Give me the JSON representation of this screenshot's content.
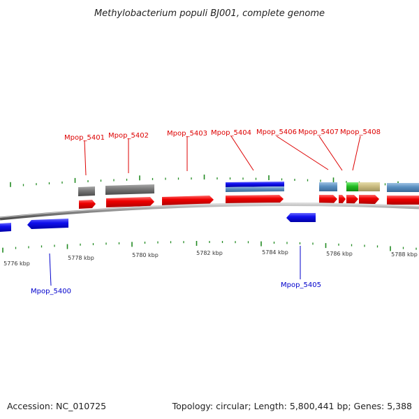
{
  "title": "Methylobacterium populi BJ001, complete genome",
  "footer": {
    "accession": "Accession: NC_010725",
    "stats": "Topology: circular; Length: 5,800,441 bp; Genes: 5,388"
  },
  "colors": {
    "forward_cds": "#e60000",
    "reverse_cds": "#1010dd",
    "label_forward": "#dd0000",
    "label_reverse": "#0000cc",
    "tick": "#228b22",
    "backbone": "#8a8a8a"
  },
  "ticks": [
    {
      "label": "5776 kbp"
    },
    {
      "label": "5778 kbp"
    },
    {
      "label": "5780 kbp"
    },
    {
      "label": "5782 kbp"
    },
    {
      "label": "5784 kbp"
    },
    {
      "label": "5786 kbp"
    },
    {
      "label": "5788 kbp"
    }
  ],
  "genes_forward": [
    {
      "name": "Mpop_5401"
    },
    {
      "name": "Mpop_5402"
    },
    {
      "name": "Mpop_5403"
    },
    {
      "name": "Mpop_5404"
    },
    {
      "name": "Mpop_5406"
    },
    {
      "name": "Mpop_5407"
    },
    {
      "name": "Mpop_5408"
    }
  ],
  "genes_reverse": [
    {
      "name": "Mpop_5400"
    },
    {
      "name": "Mpop_5405"
    }
  ]
}
